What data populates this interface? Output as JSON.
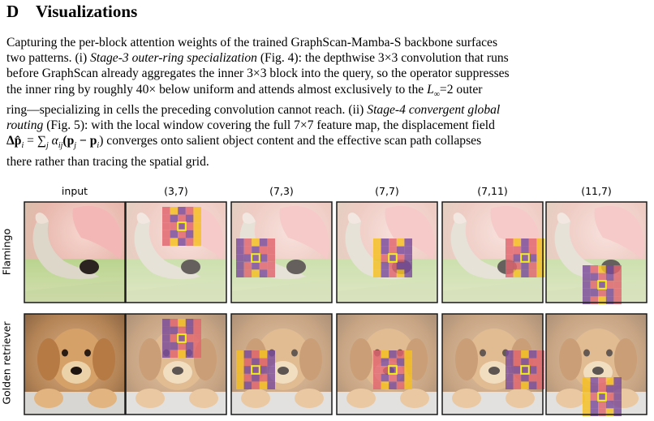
{
  "section": {
    "number": "D",
    "title": "Visualizations"
  },
  "paragraph": {
    "l1": "Capturing the per-block attention weights of the trained GraphScan-Mamba-S backbone surfaces",
    "l2a": "two patterns. (i) ",
    "l2b": "Stage-3 outer-ring specialization",
    "l2c": " (Fig. 4): the depthwise 3×3 convolution that runs",
    "l3": "before GraphScan already aggregates the inner 3×3 block into the query, so the operator suppresses",
    "l4a": "the inner ring by roughly 40× below uniform and attends almost exclusively to the ",
    "l4b": "L",
    "l4c": "∞",
    "l4d": "=2 outer",
    "l5a": "ring—specializing in cells the preceding convolution cannot reach. (ii) ",
    "l5b": "Stage-4 convergent global",
    "l6a": "routing",
    "l6b": " (Fig. 5): with the local window covering the full 7×7 feature map, the displacement field",
    "l7a": "Δp̂",
    "l7b": "i",
    "l7c": " = ∑",
    "l7d": "j",
    "l7e": " α",
    "l7f": "ij",
    "l7g": "(p",
    "l7h": "j",
    "l7i": " − p",
    "l7j": "i",
    "l7k": ") converges onto salient object content and the effective scan path collapses",
    "l8": "there rather than tracing the spatial grid."
  },
  "figure": {
    "column_headers": [
      "input",
      "(3,7)",
      "(7,3)",
      "(7,7)",
      "(7,11)",
      "(11,7)"
    ],
    "row_labels": [
      "Flamingo",
      "Golden retriever"
    ],
    "colors": {
      "query_marker": "#f2ef1e",
      "heat_high": "#f5c020",
      "heat_mid": "#e0646e",
      "heat_low": "#7a4a9a",
      "border": "#1a1a1a"
    }
  }
}
